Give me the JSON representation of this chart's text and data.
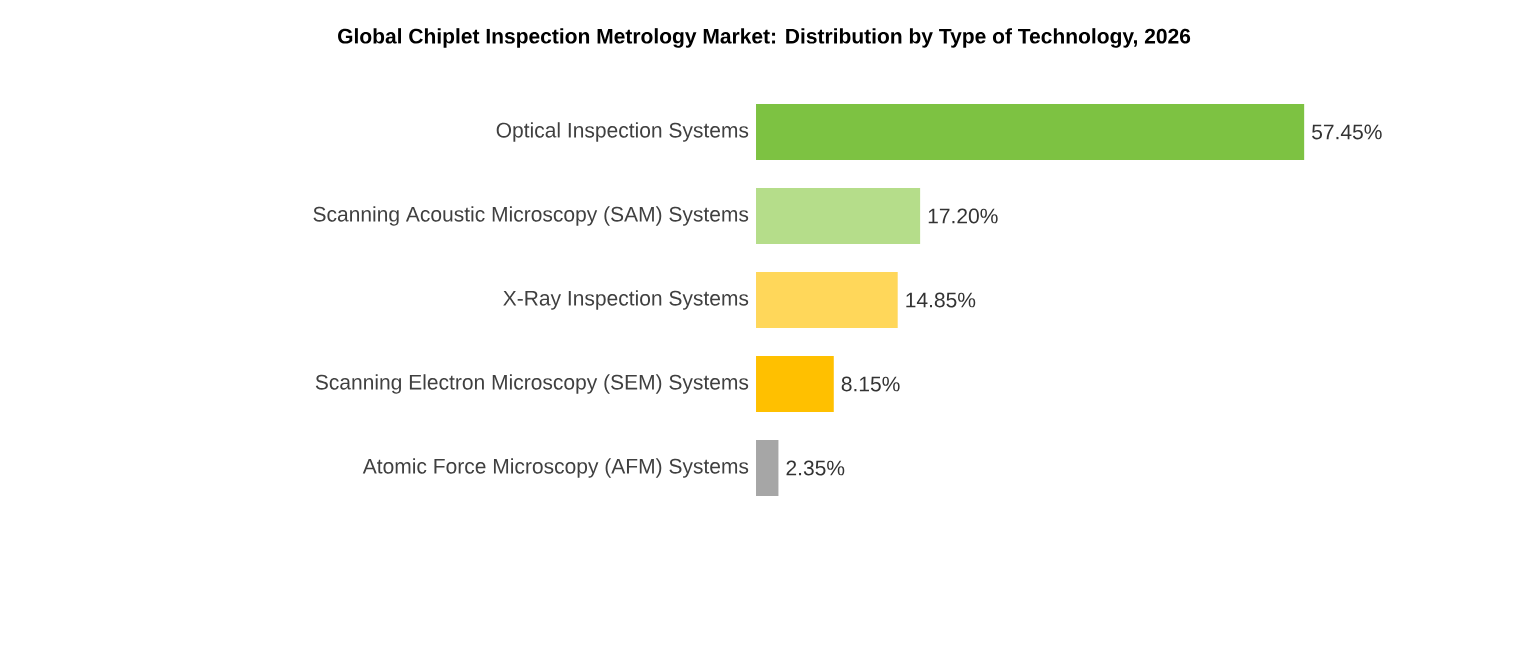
{
  "chart_data": {
    "type": "bar",
    "orientation": "horizontal",
    "title": "Global Chiplet Inspection Metrology Market: Distribution by Type of Technology, 2026",
    "categories": [
      "Optical Inspection Systems",
      "Scanning Acoustic Microscopy (SAM) Systems",
      "X-Ray Inspection Systems",
      "Scanning Electron Microscopy (SEM) Systems",
      "Atomic Force Microscopy (AFM) Systems"
    ],
    "values": [
      57.45,
      17.2,
      14.85,
      8.15,
      2.35
    ],
    "colors": [
      "#7dc242",
      "#b5dd8a",
      "#ffd75a",
      "#ffc000",
      "#a6a6a6"
    ],
    "value_labels": [
      "57.45%",
      "17.20%",
      "14.85%",
      "8.15%",
      "2.35%"
    ]
  }
}
